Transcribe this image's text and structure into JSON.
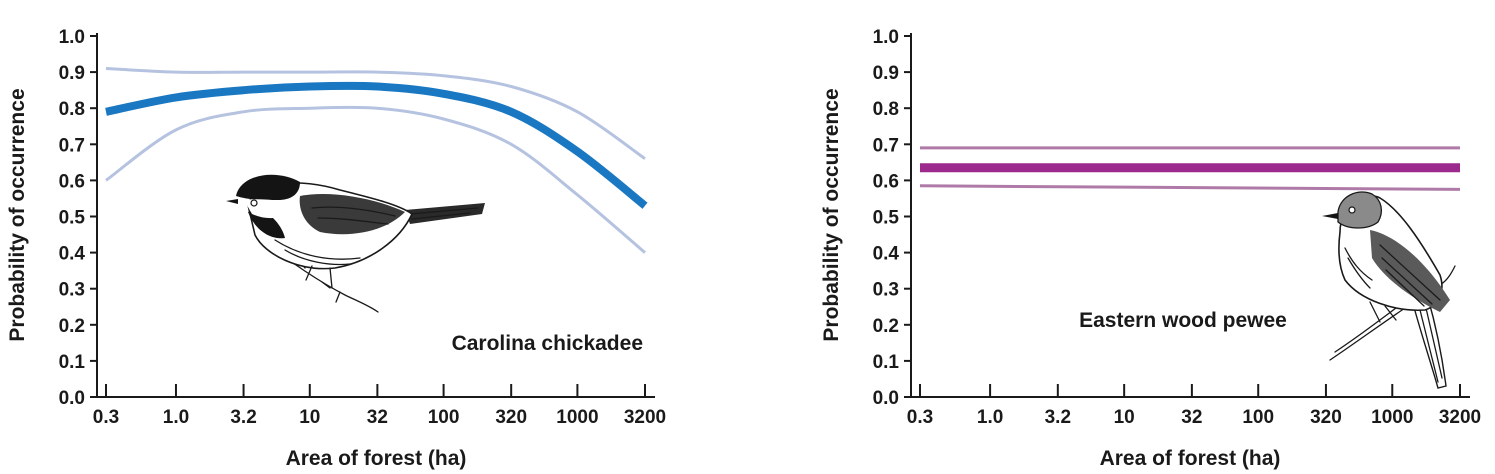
{
  "chart_data": [
    {
      "type": "line",
      "title": "",
      "species_label": "Carolina chickadee",
      "xlabel": "Area of forest (ha)",
      "ylabel": "Probability of occurrence",
      "x_scale": "log",
      "x_ticks": [
        "0.3",
        "1.0",
        "3.2",
        "10",
        "32",
        "100",
        "320",
        "1000",
        "3200"
      ],
      "x_tick_values": [
        0.3,
        1.0,
        3.2,
        10,
        32,
        100,
        320,
        1000,
        3200
      ],
      "y_ticks": [
        "0.0",
        "0.1",
        "0.2",
        "0.3",
        "0.4",
        "0.5",
        "0.6",
        "0.7",
        "0.8",
        "0.9",
        "1.0"
      ],
      "ylim": [
        0,
        1
      ],
      "series": [
        {
          "role": "estimate",
          "color": "#1a78c2",
          "x": [
            0.3,
            1.0,
            3.2,
            10,
            32,
            100,
            320,
            1000,
            3200
          ],
          "y": [
            0.79,
            0.83,
            0.85,
            0.86,
            0.86,
            0.84,
            0.79,
            0.68,
            0.53
          ]
        },
        {
          "role": "upper",
          "color": "#b5c3e0",
          "x": [
            0.3,
            1.0,
            3.2,
            10,
            32,
            100,
            320,
            1000,
            3200
          ],
          "y": [
            0.91,
            0.9,
            0.9,
            0.9,
            0.9,
            0.89,
            0.86,
            0.79,
            0.66
          ]
        },
        {
          "role": "lower",
          "color": "#b5c3e0",
          "x": [
            0.3,
            1.0,
            3.2,
            10,
            32,
            100,
            320,
            1000,
            3200
          ],
          "y": [
            0.6,
            0.74,
            0.79,
            0.8,
            0.8,
            0.77,
            0.7,
            0.56,
            0.4
          ]
        }
      ]
    },
    {
      "type": "line",
      "title": "",
      "species_label": "Eastern wood pewee",
      "xlabel": "Area of forest (ha)",
      "ylabel": "Probability of occurrence",
      "x_scale": "log",
      "x_ticks": [
        "0.3",
        "1.0",
        "3.2",
        "10",
        "32",
        "100",
        "320",
        "1000",
        "3200"
      ],
      "x_tick_values": [
        0.3,
        1.0,
        3.2,
        10,
        32,
        100,
        320,
        1000,
        3200
      ],
      "y_ticks": [
        "0.0",
        "0.1",
        "0.2",
        "0.3",
        "0.4",
        "0.5",
        "0.6",
        "0.7",
        "0.8",
        "0.9",
        "1.0"
      ],
      "ylim": [
        0,
        1
      ],
      "series": [
        {
          "role": "estimate",
          "color": "#9c2a8c",
          "x": [
            0.3,
            3200
          ],
          "y": [
            0.635,
            0.635
          ]
        },
        {
          "role": "upper",
          "color": "#b07aa8",
          "x": [
            0.3,
            3200
          ],
          "y": [
            0.69,
            0.69
          ]
        },
        {
          "role": "lower",
          "color": "#b07aa8",
          "x": [
            0.3,
            3200
          ],
          "y": [
            0.585,
            0.575
          ]
        }
      ]
    }
  ]
}
